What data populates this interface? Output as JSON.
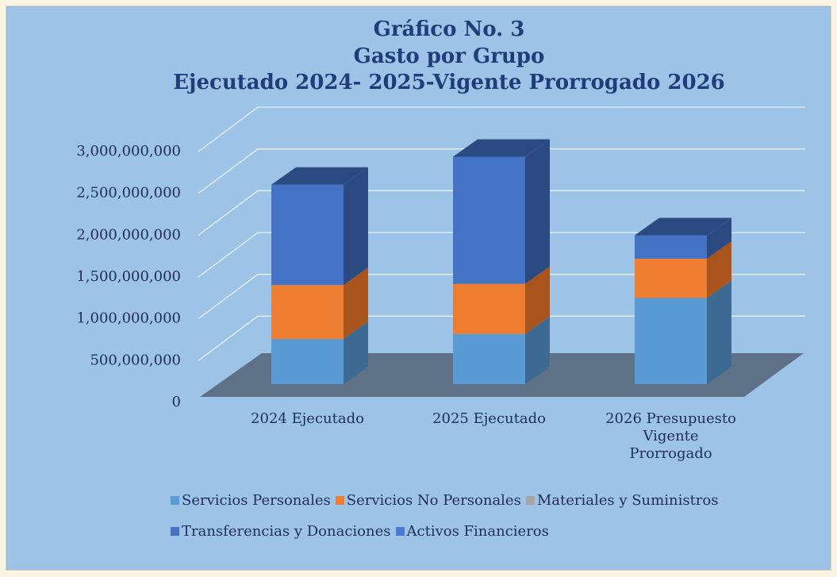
{
  "chart_data": {
    "type": "bar3d_stacked",
    "title": "Gráfico No. 3",
    "subtitle": "Gasto por Grupo",
    "subtitle2": "Ejecutado 2024- 2025-Vigente Prorrogado 2026",
    "categories": [
      "2024 Ejecutado",
      "2025 Ejecutado",
      "2026 Presupuesto Vigente Prorrogado"
    ],
    "series": [
      {
        "name": "Servicios Personales",
        "color": "#5b9bd5",
        "side": "#3c6a92",
        "values": [
          540000000,
          600000000,
          1030000000
        ]
      },
      {
        "name": "Servicios No Personales",
        "color": "#ed7d31",
        "side": "#a8541c",
        "values": [
          645000000,
          600000000,
          470000000
        ]
      },
      {
        "name": "Materiales y Suministros",
        "color": "#a5a5a5",
        "side": "#737373",
        "values": [
          0,
          0,
          0
        ]
      },
      {
        "name": "Transferencias y Donaciones",
        "color": "#4472c4",
        "side": "#2b4a82",
        "values": [
          1200000000,
          1520000000,
          280000000
        ]
      },
      {
        "name": "Activos Financieros",
        "color": "#4a7bd0",
        "side": "#2b4a82",
        "values": [
          0,
          0,
          0
        ]
      }
    ],
    "ylim": [
      0,
      3000000000
    ],
    "yticks": [
      {
        "value": 0,
        "label": "0"
      },
      {
        "value": 500000000,
        "label": "500,000,000"
      },
      {
        "value": 1000000000,
        "label": "1,000,000,000"
      },
      {
        "value": 1500000000,
        "label": "1,500,000,000"
      },
      {
        "value": 2000000000,
        "label": "2,000,000,000"
      },
      {
        "value": 2500000000,
        "label": "2,500,000,000"
      },
      {
        "value": 3000000000,
        "label": "3,000,000,000"
      }
    ],
    "grid": true
  }
}
